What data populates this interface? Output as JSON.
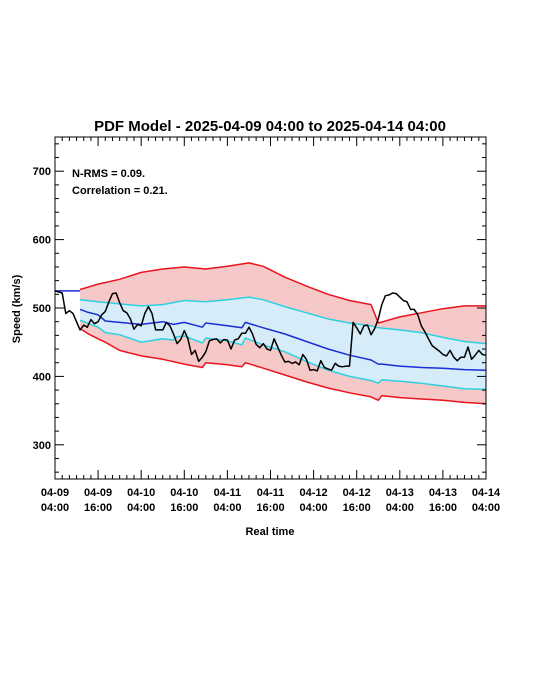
{
  "chart_data": {
    "type": "line",
    "title": "PDF Model - 2025-04-09 04:00 to 2025-04-14 04:00",
    "xlabel": "Real time",
    "ylabel": "Speed (km/s)",
    "xlim": [
      0,
      120
    ],
    "ylim": [
      250,
      750
    ],
    "yticks": [
      300,
      400,
      500,
      600,
      700
    ],
    "xticks": [
      {
        "hour": 0,
        "line1": "04-09",
        "line2": "04:00"
      },
      {
        "hour": 12,
        "line1": "04-09",
        "line2": "16:00"
      },
      {
        "hour": 24,
        "line1": "04-10",
        "line2": "04:00"
      },
      {
        "hour": 36,
        "line1": "04-10",
        "line2": "16:00"
      },
      {
        "hour": 48,
        "line1": "04-11",
        "line2": "04:00"
      },
      {
        "hour": 60,
        "line1": "04-11",
        "line2": "16:00"
      },
      {
        "hour": 72,
        "line1": "04-12",
        "line2": "04:00"
      },
      {
        "hour": 84,
        "line1": "04-12",
        "line2": "16:00"
      },
      {
        "hour": 96,
        "line1": "04-13",
        "line2": "04:00"
      },
      {
        "hour": 108,
        "line1": "04-13",
        "line2": "16:00"
      },
      {
        "hour": 120,
        "line1": "04-14",
        "line2": "04:00"
      }
    ],
    "annotations": [
      "N-RMS = 0.09.",
      "Correlation = 0.21."
    ],
    "colors": {
      "outer_band": "#f7c8c8",
      "outer_line": "#e8141e",
      "inner_band": "#d6ecf8",
      "inner_line": "#2ed0e0",
      "median_line": "#1b2ed6",
      "observed_line": "#000000"
    },
    "series": [
      {
        "role": "outer_upper",
        "points": [
          [
            7,
            527
          ],
          [
            12,
            535
          ],
          [
            18,
            542
          ],
          [
            24,
            552
          ],
          [
            30,
            557
          ],
          [
            36,
            560
          ],
          [
            42,
            557
          ],
          [
            48,
            561
          ],
          [
            54,
            566
          ],
          [
            58,
            561
          ],
          [
            64,
            545
          ],
          [
            70,
            532
          ],
          [
            76,
            520
          ],
          [
            82,
            511
          ],
          [
            88,
            505
          ],
          [
            90,
            478
          ],
          [
            96,
            487
          ],
          [
            102,
            493
          ],
          [
            108,
            499
          ],
          [
            114,
            503
          ],
          [
            120,
            503
          ]
        ]
      },
      {
        "role": "outer_lower",
        "points": [
          [
            7,
            470
          ],
          [
            9,
            463
          ],
          [
            12,
            455
          ],
          [
            14,
            450
          ],
          [
            18,
            438
          ],
          [
            24,
            430
          ],
          [
            30,
            425
          ],
          [
            36,
            418
          ],
          [
            41,
            413
          ],
          [
            42,
            420
          ],
          [
            48,
            417
          ],
          [
            52,
            414
          ],
          [
            53,
            420
          ],
          [
            58,
            412
          ],
          [
            64,
            402
          ],
          [
            70,
            392
          ],
          [
            76,
            383
          ],
          [
            82,
            376
          ],
          [
            88,
            370
          ],
          [
            90,
            365
          ],
          [
            91,
            372
          ],
          [
            96,
            369
          ],
          [
            102,
            367
          ],
          [
            108,
            365
          ],
          [
            114,
            362
          ],
          [
            120,
            360
          ]
        ]
      },
      {
        "role": "inner_upper",
        "points": [
          [
            7,
            512
          ],
          [
            12,
            509
          ],
          [
            18,
            506
          ],
          [
            24,
            503
          ],
          [
            30,
            505
          ],
          [
            36,
            511
          ],
          [
            42,
            509
          ],
          [
            48,
            512
          ],
          [
            54,
            516
          ],
          [
            58,
            512
          ],
          [
            64,
            502
          ],
          [
            70,
            493
          ],
          [
            76,
            484
          ],
          [
            82,
            478
          ],
          [
            88,
            474
          ],
          [
            90,
            471
          ],
          [
            96,
            468
          ],
          [
            102,
            464
          ],
          [
            108,
            457
          ],
          [
            114,
            451
          ],
          [
            120,
            448
          ]
        ]
      },
      {
        "role": "inner_lower",
        "points": [
          [
            7,
            482
          ],
          [
            9,
            478
          ],
          [
            12,
            472
          ],
          [
            14,
            464
          ],
          [
            18,
            461
          ],
          [
            24,
            450
          ],
          [
            30,
            455
          ],
          [
            33,
            453
          ],
          [
            34,
            458
          ],
          [
            36,
            459
          ],
          [
            41,
            449
          ],
          [
            42,
            456
          ],
          [
            48,
            452
          ],
          [
            52,
            446
          ],
          [
            53,
            456
          ],
          [
            58,
            446
          ],
          [
            64,
            436
          ],
          [
            70,
            422
          ],
          [
            76,
            409
          ],
          [
            82,
            400
          ],
          [
            88,
            394
          ],
          [
            90,
            390
          ],
          [
            91,
            395
          ],
          [
            96,
            393
          ],
          [
            102,
            390
          ],
          [
            108,
            386
          ],
          [
            114,
            382
          ],
          [
            120,
            381
          ]
        ]
      },
      {
        "role": "median",
        "points": [
          [
            7,
            498
          ],
          [
            9,
            494
          ],
          [
            12,
            490
          ],
          [
            14,
            481
          ],
          [
            18,
            479
          ],
          [
            24,
            476
          ],
          [
            30,
            480
          ],
          [
            33,
            476
          ],
          [
            36,
            479
          ],
          [
            41,
            472
          ],
          [
            42,
            478
          ],
          [
            48,
            474
          ],
          [
            52,
            471
          ],
          [
            53,
            479
          ],
          [
            58,
            471
          ],
          [
            64,
            462
          ],
          [
            70,
            451
          ],
          [
            76,
            440
          ],
          [
            82,
            431
          ],
          [
            88,
            424
          ],
          [
            90,
            418
          ],
          [
            91,
            418
          ],
          [
            96,
            415
          ],
          [
            102,
            413
          ],
          [
            108,
            412
          ],
          [
            114,
            410
          ],
          [
            120,
            409
          ]
        ]
      },
      {
        "role": "observed",
        "points": [
          [
            0,
            525
          ],
          [
            2,
            522
          ],
          [
            3,
            492
          ],
          [
            4,
            496
          ],
          [
            5,
            492
          ],
          [
            6,
            480
          ],
          [
            7,
            468
          ],
          [
            8,
            475
          ],
          [
            9,
            472
          ],
          [
            10,
            483
          ],
          [
            11,
            477
          ],
          [
            12,
            480
          ],
          [
            13,
            490
          ],
          [
            14,
            495
          ],
          [
            15,
            509
          ],
          [
            16,
            521
          ],
          [
            17,
            522
          ],
          [
            18,
            508
          ],
          [
            19,
            496
          ],
          [
            20,
            493
          ],
          [
            21,
            484
          ],
          [
            22,
            469
          ],
          [
            23,
            476
          ],
          [
            24,
            474
          ],
          [
            25,
            492
          ],
          [
            26,
            502
          ],
          [
            27,
            492
          ],
          [
            28,
            468
          ],
          [
            29,
            468
          ],
          [
            30,
            468
          ],
          [
            31,
            479
          ],
          [
            32,
            474
          ],
          [
            33,
            462
          ],
          [
            34,
            448
          ],
          [
            35,
            454
          ],
          [
            36,
            467
          ],
          [
            37,
            455
          ],
          [
            38,
            432
          ],
          [
            39,
            438
          ],
          [
            40,
            422
          ],
          [
            41,
            428
          ],
          [
            42,
            436
          ],
          [
            43,
            452
          ],
          [
            44,
            454
          ],
          [
            45,
            455
          ],
          [
            46,
            449
          ],
          [
            47,
            454
          ],
          [
            48,
            453
          ],
          [
            49,
            440
          ],
          [
            50,
            453
          ],
          [
            51,
            455
          ],
          [
            52,
            463
          ],
          [
            53,
            463
          ],
          [
            54,
            472
          ],
          [
            55,
            462
          ],
          [
            56,
            447
          ],
          [
            57,
            442
          ],
          [
            58,
            448
          ],
          [
            59,
            440
          ],
          [
            60,
            438
          ],
          [
            61,
            455
          ],
          [
            62,
            443
          ],
          [
            63,
            431
          ],
          [
            64,
            421
          ],
          [
            65,
            422
          ],
          [
            66,
            419
          ],
          [
            67,
            421
          ],
          [
            68,
            417
          ],
          [
            69,
            432
          ],
          [
            70,
            425
          ],
          [
            71,
            409
          ],
          [
            72,
            410
          ],
          [
            73,
            408
          ],
          [
            74,
            423
          ],
          [
            75,
            413
          ],
          [
            76,
            411
          ],
          [
            77,
            409
          ],
          [
            78,
            419
          ],
          [
            79,
            415
          ],
          [
            80,
            414
          ],
          [
            81,
            415
          ],
          [
            82,
            415
          ],
          [
            83,
            479
          ],
          [
            84,
            471
          ],
          [
            85,
            462
          ],
          [
            86,
            474
          ],
          [
            87,
            475
          ],
          [
            88,
            461
          ],
          [
            89,
            470
          ],
          [
            90,
            484
          ],
          [
            91,
            505
          ],
          [
            92,
            518
          ],
          [
            93,
            519
          ],
          [
            94,
            522
          ],
          [
            95,
            521
          ],
          [
            96,
            516
          ],
          [
            97,
            511
          ],
          [
            98,
            509
          ],
          [
            99,
            498
          ],
          [
            100,
            498
          ],
          [
            101,
            490
          ],
          [
            102,
            474
          ],
          [
            103,
            465
          ],
          [
            104,
            455
          ],
          [
            105,
            445
          ],
          [
            106,
            441
          ],
          [
            107,
            437
          ],
          [
            108,
            432
          ],
          [
            109,
            430
          ],
          [
            110,
            438
          ],
          [
            111,
            428
          ],
          [
            112,
            423
          ],
          [
            113,
            428
          ],
          [
            114,
            428
          ],
          [
            115,
            443
          ],
          [
            116,
            425
          ],
          [
            117,
            431
          ],
          [
            118,
            438
          ],
          [
            119,
            432
          ],
          [
            120,
            431
          ]
        ]
      },
      {
        "role": "initial_flat",
        "points": [
          [
            0,
            525
          ],
          [
            7,
            525
          ]
        ]
      }
    ]
  }
}
